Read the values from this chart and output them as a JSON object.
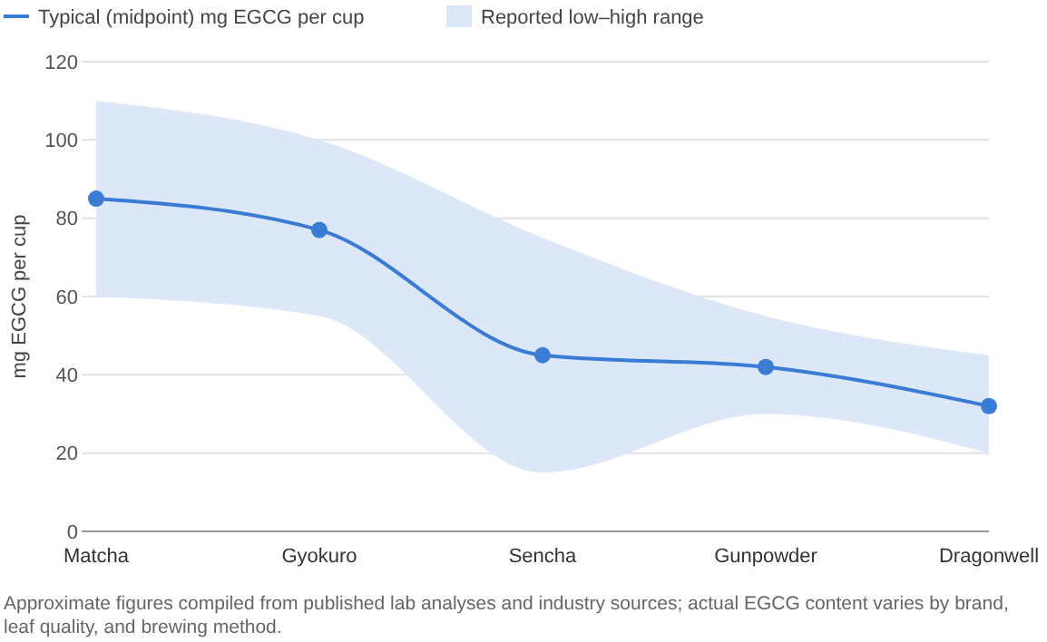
{
  "chart_data": {
    "type": "line",
    "ylabel": "mg EGCG per cup",
    "categories": [
      "Matcha",
      "Gyokuro",
      "Sencha",
      "Gunpowder",
      "Dragonwell"
    ],
    "series": [
      {
        "name": "Typical (midpoint) mg EGCG per cup",
        "color": "#3a7bd5",
        "values": [
          85,
          77,
          45,
          42,
          32
        ],
        "lower": [
          60,
          55,
          15,
          30,
          20
        ],
        "upper": [
          110,
          100,
          75,
          55,
          45
        ],
        "marker": "circle"
      },
      {
        "type": "area",
        "name": "Reported low–high range",
        "color": "#dce8f8",
        "values": [
          null,
          null,
          null,
          null,
          null
        ]
      }
    ],
    "ylim": [
      0,
      120
    ],
    "yticks": [
      0,
      20,
      40,
      60,
      80,
      100,
      120
    ],
    "grid": "y",
    "legend": "top left",
    "line_style": "solid",
    "annotations": [
      "Approximate figures compiled from published lab analyses and industry sources; actual EGCG content varies by brand, leaf quality, and brewing method."
    ]
  }
}
